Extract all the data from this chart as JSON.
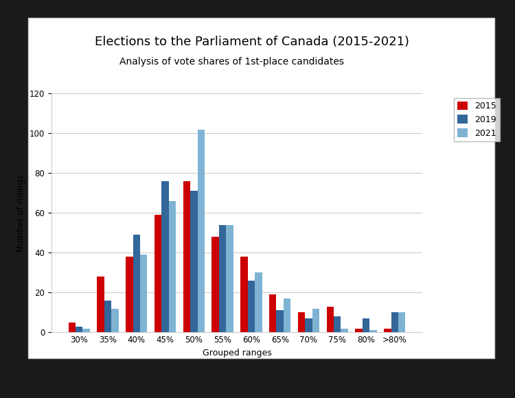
{
  "title": "Elections to the Parliament of Canada (2015-2021)",
  "subtitle": "Analysis of vote shares of 1st-place candidates",
  "xlabel": "Grouped ranges",
  "ylabel": "Number of ridings",
  "categories": [
    "30%",
    "35%",
    "40%",
    "45%",
    "50%",
    "55%",
    "60%",
    "65%",
    "70%",
    "75%",
    "80%",
    ">80%"
  ],
  "series": {
    "2015": [
      5,
      28,
      38,
      59,
      76,
      48,
      38,
      19,
      10,
      13,
      2,
      2
    ],
    "2019": [
      3,
      16,
      49,
      76,
      71,
      54,
      26,
      11,
      7,
      8,
      7,
      10
    ],
    "2021": [
      2,
      12,
      39,
      66,
      102,
      54,
      30,
      17,
      12,
      2,
      1,
      10
    ]
  },
  "colors": {
    "2015": "#cc0000",
    "2019": "#336699",
    "2021": "#7fb3d3"
  },
  "ylim": [
    0,
    120
  ],
  "yticks": [
    0,
    20,
    40,
    60,
    80,
    100,
    120
  ],
  "outer_bg": "#1a1a1a",
  "panel_bg": "#ffffff",
  "title_fontsize": 13,
  "subtitle_fontsize": 10,
  "axis_label_fontsize": 9,
  "tick_fontsize": 8.5,
  "legend_fontsize": 9,
  "bar_width": 0.25
}
